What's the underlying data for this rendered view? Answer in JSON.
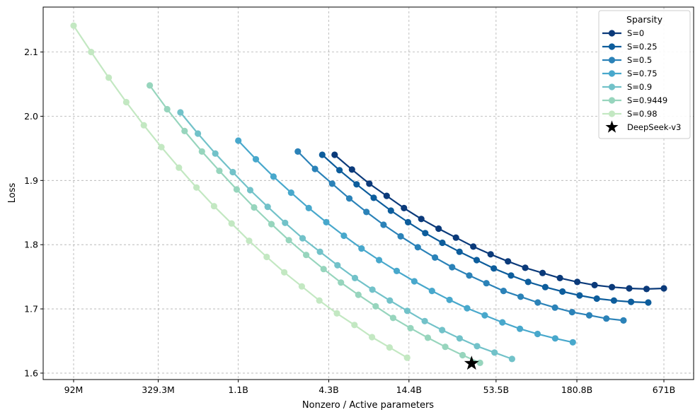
{
  "chart_data": {
    "type": "line",
    "xlabel": "Nonzero / Active parameters",
    "ylabel": "Loss",
    "x_scale": "log",
    "x_ticks": [
      "92M",
      "329.3M",
      "1.1B",
      "4.3B",
      "14.4B",
      "53.5B",
      "180.8B",
      "671B"
    ],
    "y_ticks": [
      "1.6",
      "1.7",
      "1.8",
      "1.9",
      "2.0",
      "2.1"
    ],
    "ylim": [
      1.59,
      2.17
    ],
    "grid": true,
    "legend": {
      "title": "Sparsity",
      "placement": "top-right"
    },
    "series": [
      {
        "name": "S=0",
        "color": "#0b3a7a",
        "x_range": [
          "4.7B",
          "671B"
        ],
        "values": [
          1.94,
          1.917,
          1.895,
          1.876,
          1.857,
          1.84,
          1.825,
          1.811,
          1.797,
          1.785,
          1.774,
          1.764,
          1.756,
          1.748,
          1.742,
          1.737,
          1.734,
          1.732,
          1.731,
          1.732
        ]
      },
      {
        "name": "S=0.25",
        "color": "#0d5d9c",
        "x_range": [
          "3.9B",
          "530B"
        ],
        "values": [
          1.94,
          1.916,
          1.894,
          1.873,
          1.853,
          1.835,
          1.818,
          1.803,
          1.789,
          1.776,
          1.763,
          1.752,
          1.742,
          1.734,
          1.727,
          1.721,
          1.716,
          1.713,
          1.711,
          1.71
        ]
      },
      {
        "name": "S=0.5",
        "color": "#2b82b8",
        "x_range": [
          "2.7B",
          "365B"
        ],
        "values": [
          1.945,
          1.918,
          1.895,
          1.872,
          1.851,
          1.831,
          1.813,
          1.796,
          1.78,
          1.765,
          1.752,
          1.74,
          1.728,
          1.719,
          1.71,
          1.702,
          1.695,
          1.69,
          1.685,
          1.682
        ]
      },
      {
        "name": "S=0.75",
        "color": "#48a8cc",
        "x_range": [
          "1.1B",
          "170B"
        ],
        "values": [
          1.962,
          1.933,
          1.906,
          1.881,
          1.857,
          1.835,
          1.814,
          1.794,
          1.776,
          1.759,
          1.743,
          1.728,
          1.714,
          1.701,
          1.69,
          1.679,
          1.669,
          1.661,
          1.654,
          1.648
        ]
      },
      {
        "name": "S=0.9",
        "color": "#72c2c9",
        "x_range": [
          "460M",
          "68B"
        ],
        "values": [
          2.006,
          1.973,
          1.942,
          1.913,
          1.885,
          1.859,
          1.834,
          1.81,
          1.789,
          1.768,
          1.748,
          1.73,
          1.713,
          1.697,
          1.681,
          1.667,
          1.654,
          1.642,
          1.632,
          1.622
        ]
      },
      {
        "name": "S=0.9449",
        "color": "#97d5bd",
        "x_range": [
          "290M",
          "42B"
        ],
        "values": [
          2.048,
          2.011,
          1.977,
          1.945,
          1.915,
          1.886,
          1.858,
          1.832,
          1.807,
          1.784,
          1.762,
          1.741,
          1.722,
          1.704,
          1.686,
          1.67,
          1.655,
          1.641,
          1.628,
          1.616
        ]
      },
      {
        "name": "S=0.98",
        "color": "#c3e8c2",
        "x_range": [
          "92M",
          "14B"
        ],
        "values": [
          2.141,
          2.1,
          2.06,
          2.022,
          1.986,
          1.952,
          1.92,
          1.889,
          1.86,
          1.833,
          1.806,
          1.781,
          1.757,
          1.735,
          1.713,
          1.693,
          1.675,
          1.656,
          1.64,
          1.624
        ]
      }
    ],
    "markers": [
      {
        "name": "DeepSeek-v3",
        "x": "37B",
        "y": 1.615,
        "symbol": "star",
        "color": "#000000"
      }
    ]
  }
}
